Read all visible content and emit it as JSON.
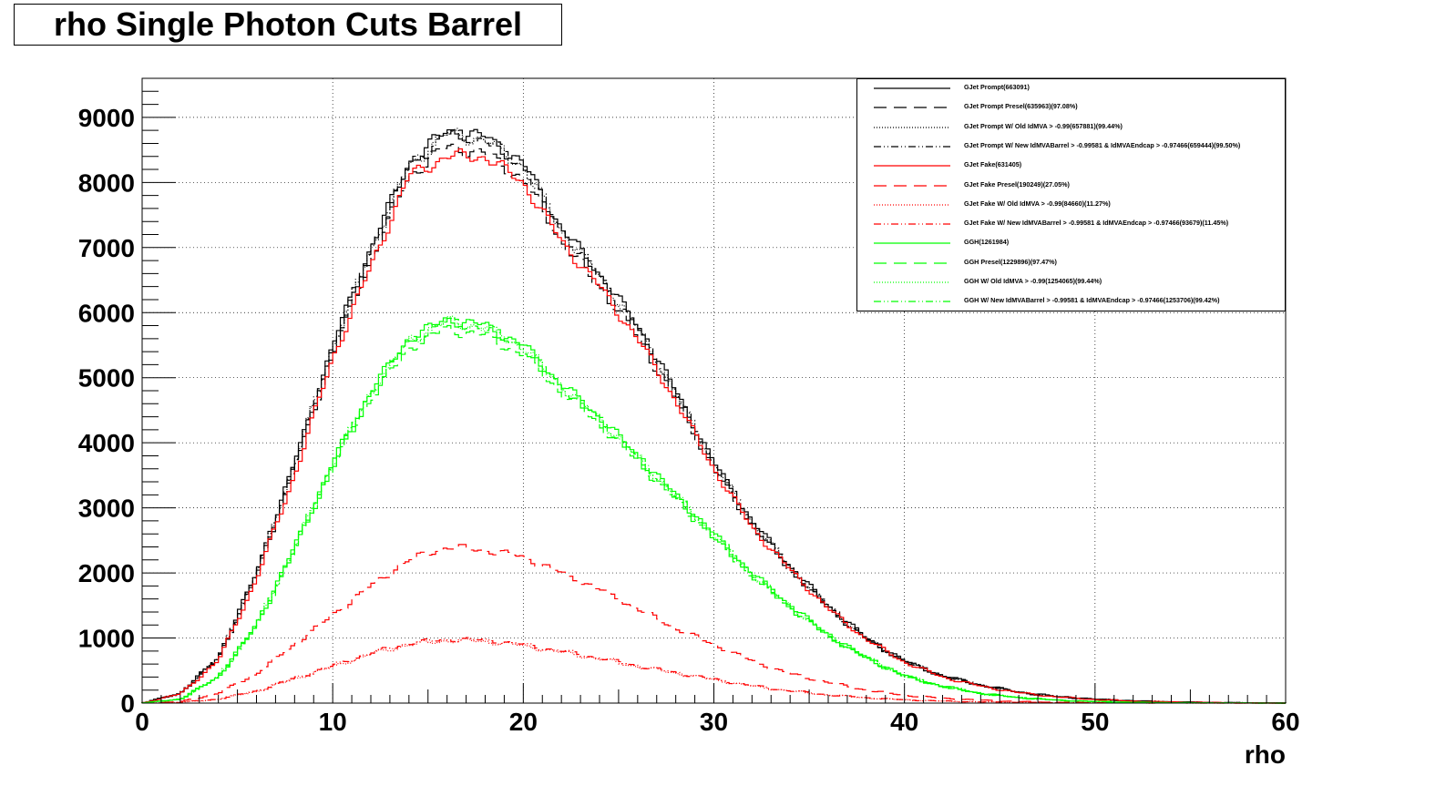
{
  "chart_data": {
    "type": "line",
    "title": "rho Single Photon Cuts Barrel",
    "xlabel": "rho",
    "ylabel": "",
    "xlim": [
      0,
      60
    ],
    "ylim": [
      0,
      9600
    ],
    "x_ticks": [
      "0",
      "10",
      "20",
      "30",
      "40",
      "50",
      "60"
    ],
    "y_ticks": [
      "0",
      "1000",
      "2000",
      "3000",
      "4000",
      "5000",
      "6000",
      "7000",
      "8000",
      "9000"
    ],
    "grid": true,
    "legend_position": "top-right",
    "x": [
      0,
      2,
      4,
      6,
      8,
      10,
      12,
      14,
      16,
      18,
      20,
      22,
      24,
      26,
      28,
      30,
      32,
      34,
      36,
      38,
      40,
      42,
      44,
      46,
      48,
      50,
      52,
      54,
      56,
      58,
      60
    ],
    "series": [
      {
        "name": "GJet Prompt(663091)",
        "color": "#000000",
        "dash": "solid",
        "values": [
          0,
          150,
          700,
          2000,
          3700,
          5500,
          7000,
          8300,
          8800,
          8700,
          8300,
          7300,
          6600,
          5800,
          4800,
          3700,
          2800,
          2100,
          1500,
          1000,
          650,
          420,
          280,
          170,
          100,
          60,
          35,
          20,
          10,
          5,
          0
        ]
      },
      {
        "name": "GJet Prompt Presel(635963)(97.08%)",
        "color": "#000000",
        "dash": "longdash",
        "values": [
          0,
          145,
          680,
          1950,
          3600,
          5350,
          6800,
          8100,
          8550,
          8450,
          8050,
          7100,
          6400,
          5630,
          4660,
          3590,
          2720,
          2040,
          1460,
          970,
          630,
          410,
          270,
          165,
          97,
          58,
          34,
          19,
          10,
          5,
          0
        ]
      },
      {
        "name": "GJet Prompt W/ Old IdMVA > -0.99(657881)(99.44%)",
        "color": "#000000",
        "dash": "dotted",
        "values": [
          0,
          149,
          696,
          1990,
          3680,
          5470,
          6960,
          8250,
          8750,
          8650,
          8250,
          7260,
          6560,
          5770,
          4770,
          3680,
          2785,
          2090,
          1490,
          995,
          646,
          418,
          278,
          169,
          99,
          60,
          35,
          20,
          10,
          5,
          0
        ]
      },
      {
        "name": "GJet Prompt W/ New IdMVABarrel > -0.99581 & IdMVAEndcap > -0.97466(659444)(99.50%)",
        "color": "#000000",
        "dash": "dashdotdot",
        "values": [
          0,
          149,
          697,
          1990,
          3680,
          5470,
          6965,
          8260,
          8755,
          8655,
          8260,
          7265,
          6565,
          5770,
          4775,
          3680,
          2786,
          2090,
          1492,
          995,
          647,
          418,
          279,
          169,
          100,
          60,
          35,
          20,
          10,
          5,
          0
        ]
      },
      {
        "name": "GJet Fake(631405)",
        "color": "#ff0000",
        "dash": "solid",
        "values": [
          0,
          140,
          650,
          1900,
          3500,
          5300,
          6700,
          8100,
          8400,
          8400,
          8000,
          7100,
          6400,
          5600,
          4650,
          3600,
          2700,
          2050,
          1450,
          980,
          630,
          400,
          260,
          160,
          95,
          55,
          30,
          18,
          9,
          4,
          0
        ]
      },
      {
        "name": "GJet Fake Presel(190249)(27.05%)",
        "color": "#ff0000",
        "dash": "longdash",
        "values": [
          0,
          20,
          150,
          450,
          900,
          1350,
          1800,
          2200,
          2400,
          2350,
          2250,
          2000,
          1750,
          1450,
          1150,
          900,
          650,
          450,
          320,
          200,
          120,
          75,
          45,
          25,
          15,
          8,
          5,
          3,
          1,
          0,
          0
        ]
      },
      {
        "name": "GJet Fake W/ Old IdMVA > -0.99(84660)(11.27%)",
        "color": "#ff0000",
        "dash": "dotted",
        "values": [
          0,
          10,
          60,
          180,
          370,
          560,
          750,
          900,
          960,
          950,
          880,
          780,
          680,
          560,
          460,
          360,
          260,
          185,
          125,
          80,
          50,
          30,
          18,
          10,
          6,
          3,
          2,
          1,
          0,
          0,
          0
        ]
      },
      {
        "name": "GJet Fake W/ New IdMVABarrel > -0.99581 & IdMVAEndcap > -0.97466(93679)(11.45%)",
        "color": "#ff0000",
        "dash": "dashdotdot",
        "values": [
          0,
          11,
          62,
          185,
          380,
          575,
          770,
          920,
          980,
          970,
          900,
          800,
          695,
          575,
          470,
          368,
          266,
          190,
          128,
          82,
          51,
          31,
          19,
          11,
          6,
          3,
          2,
          1,
          0,
          0,
          0
        ]
      },
      {
        "name": "GGH(1261984)",
        "color": "#00ff00",
        "dash": "solid",
        "values": [
          0,
          60,
          400,
          1200,
          2400,
          3700,
          4800,
          5600,
          5900,
          5800,
          5500,
          4900,
          4400,
          3800,
          3200,
          2600,
          2000,
          1500,
          1050,
          700,
          420,
          260,
          150,
          85,
          45,
          25,
          12,
          6,
          3,
          1,
          0
        ]
      },
      {
        "name": "GGH Presel(1229896)(97.47%)",
        "color": "#00ff00",
        "dash": "longdash",
        "values": [
          0,
          58,
          390,
          1170,
          2340,
          3610,
          4680,
          5460,
          5750,
          5650,
          5360,
          4780,
          4290,
          3700,
          3120,
          2530,
          1950,
          1460,
          1020,
          680,
          410,
          253,
          146,
          83,
          44,
          24,
          12,
          6,
          3,
          1,
          0
        ]
      },
      {
        "name": "GGH W/ Old IdMVA > -0.99(1254065)(99.44%)",
        "color": "#00ff00",
        "dash": "dotted",
        "values": [
          0,
          60,
          398,
          1193,
          2387,
          3680,
          4773,
          5570,
          5867,
          5768,
          5470,
          4873,
          4375,
          3779,
          3182,
          2585,
          1989,
          1492,
          1044,
          696,
          418,
          259,
          149,
          85,
          45,
          25,
          12,
          6,
          3,
          1,
          0
        ]
      },
      {
        "name": "GGH W/ New IdMVABarrel > -0.99581 & IdMVAEndcap > -0.97466(1253706)(99.42%)",
        "color": "#00ff00",
        "dash": "dashdotdot",
        "values": [
          0,
          60,
          398,
          1193,
          2386,
          3679,
          4772,
          5568,
          5866,
          5766,
          5468,
          4872,
          4374,
          3778,
          3181,
          2585,
          1988,
          1491,
          1044,
          696,
          418,
          258,
          149,
          85,
          45,
          25,
          12,
          6,
          3,
          1,
          0
        ]
      }
    ]
  }
}
